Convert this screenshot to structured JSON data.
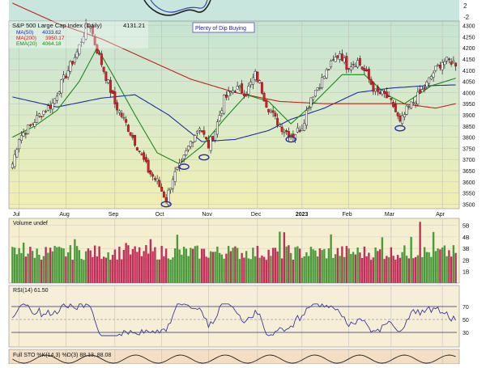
{
  "chart_data": {
    "type": "candlestick",
    "title": "S&P 500 Large Cap Index (Daily)",
    "last_close": "4131.21",
    "annotation": "Plenty of Dip Buying",
    "overlays": [
      {
        "name": "MA(50)",
        "value": "4033.62",
        "color": "#1f2fa0"
      },
      {
        "name": "MA(200)",
        "value": "3950.17",
        "color": "#c0201e"
      },
      {
        "name": "EMA(20)",
        "value": "4064.18",
        "color": "#1a8a1a"
      }
    ],
    "price_axis": {
      "ticks": [
        "4300",
        "4250",
        "4200",
        "4150",
        "4100",
        "4050",
        "4000",
        "3950",
        "3900",
        "3850",
        "3800",
        "3750",
        "3700",
        "3650",
        "3600",
        "3550",
        "3500"
      ],
      "range": [
        3480,
        4320
      ]
    },
    "month_labels": [
      {
        "label": "Jul",
        "day": 3
      },
      {
        "label": "Aug",
        "day": 24
      },
      {
        "label": "Sep",
        "day": 46
      },
      {
        "label": "Oct",
        "day": 67
      },
      {
        "label": "Nov",
        "day": 88
      },
      {
        "label": "Dec",
        "day": 110
      },
      {
        "label": "2023",
        "day": 130
      },
      {
        "label": "Feb",
        "day": 151
      },
      {
        "label": "Mar",
        "day": 170
      },
      {
        "label": "Apr",
        "day": 193
      }
    ],
    "close_anchors": [
      [
        0,
        3680
      ],
      [
        3,
        3800
      ],
      [
        8,
        3850
      ],
      [
        13,
        3910
      ],
      [
        18,
        3950
      ],
      [
        21,
        4020
      ],
      [
        25,
        4100
      ],
      [
        29,
        4180
      ],
      [
        33,
        4290
      ],
      [
        35,
        4300
      ],
      [
        37,
        4220
      ],
      [
        41,
        4100
      ],
      [
        46,
        3950
      ],
      [
        51,
        3860
      ],
      [
        56,
        3760
      ],
      [
        61,
        3650
      ],
      [
        65,
        3600
      ],
      [
        69,
        3520
      ],
      [
        72,
        3620
      ],
      [
        76,
        3680
      ],
      [
        80,
        3780
      ],
      [
        84,
        3850
      ],
      [
        88,
        3760
      ],
      [
        91,
        3830
      ],
      [
        95,
        3970
      ],
      [
        100,
        4020
      ],
      [
        105,
        4000
      ],
      [
        109,
        4080
      ],
      [
        111,
        4040
      ],
      [
        114,
        3950
      ],
      [
        118,
        3880
      ],
      [
        122,
        3830
      ],
      [
        126,
        3810
      ],
      [
        130,
        3850
      ],
      [
        134,
        3980
      ],
      [
        138,
        4040
      ],
      [
        142,
        4110
      ],
      [
        147,
        4180
      ],
      [
        150,
        4120
      ],
      [
        155,
        4140
      ],
      [
        159,
        4080
      ],
      [
        163,
        4000
      ],
      [
        167,
        3990
      ],
      [
        171,
        3940
      ],
      [
        174,
        3860
      ],
      [
        177,
        3920
      ],
      [
        181,
        3970
      ],
      [
        185,
        4020
      ],
      [
        189,
        4090
      ],
      [
        193,
        4140
      ],
      [
        197,
        4140
      ],
      [
        199,
        4131
      ]
    ],
    "moving_average_anchors": {
      "MA(50)": [
        [
          0,
          3980
        ],
        [
          20,
          3935
        ],
        [
          40,
          3975
        ],
        [
          55,
          3990
        ],
        [
          70,
          3900
        ],
        [
          85,
          3780
        ],
        [
          100,
          3790
        ],
        [
          115,
          3830
        ],
        [
          125,
          3880
        ],
        [
          140,
          3930
        ],
        [
          155,
          4000
        ],
        [
          170,
          4020
        ],
        [
          185,
          4030
        ],
        [
          199,
          4034
        ]
      ],
      "MA(200)": [
        [
          0,
          4400
        ],
        [
          20,
          4310
        ],
        [
          40,
          4240
        ],
        [
          60,
          4150
        ],
        [
          80,
          4060
        ],
        [
          100,
          4000
        ],
        [
          120,
          3960
        ],
        [
          140,
          3950
        ],
        [
          160,
          3950
        ],
        [
          175,
          3950
        ],
        [
          190,
          3930
        ],
        [
          199,
          3950
        ]
      ],
      "EMA(20)": [
        [
          0,
          3800
        ],
        [
          10,
          3850
        ],
        [
          20,
          3920
        ],
        [
          30,
          4050
        ],
        [
          38,
          4200
        ],
        [
          45,
          4080
        ],
        [
          55,
          3900
        ],
        [
          65,
          3730
        ],
        [
          75,
          3680
        ],
        [
          85,
          3760
        ],
        [
          95,
          3880
        ],
        [
          105,
          3990
        ],
        [
          115,
          3960
        ],
        [
          125,
          3860
        ],
        [
          135,
          3950
        ],
        [
          148,
          4080
        ],
        [
          158,
          4080
        ],
        [
          168,
          3990
        ],
        [
          176,
          3950
        ],
        [
          188,
          4030
        ],
        [
          199,
          4064
        ]
      ]
    },
    "dip_markers": [
      {
        "day": 69,
        "price": 3500
      },
      {
        "day": 77,
        "price": 3668
      },
      {
        "day": 86,
        "price": 3710
      },
      {
        "day": 125,
        "price": 3790
      },
      {
        "day": 174,
        "price": 3840
      }
    ],
    "volume": {
      "label": "Volume undef",
      "ticks": [
        "5B",
        "4B",
        "3B",
        "2B",
        "1B"
      ],
      "range": [
        0,
        5.6
      ]
    },
    "rsi": {
      "label": "RSI(14) 61.50",
      "ticks": [
        "70",
        "50",
        "30"
      ],
      "value": 61.5
    },
    "stochastic": {
      "label": "Full STO %K(14,3) %D(3) 88.13, 88.08"
    }
  }
}
